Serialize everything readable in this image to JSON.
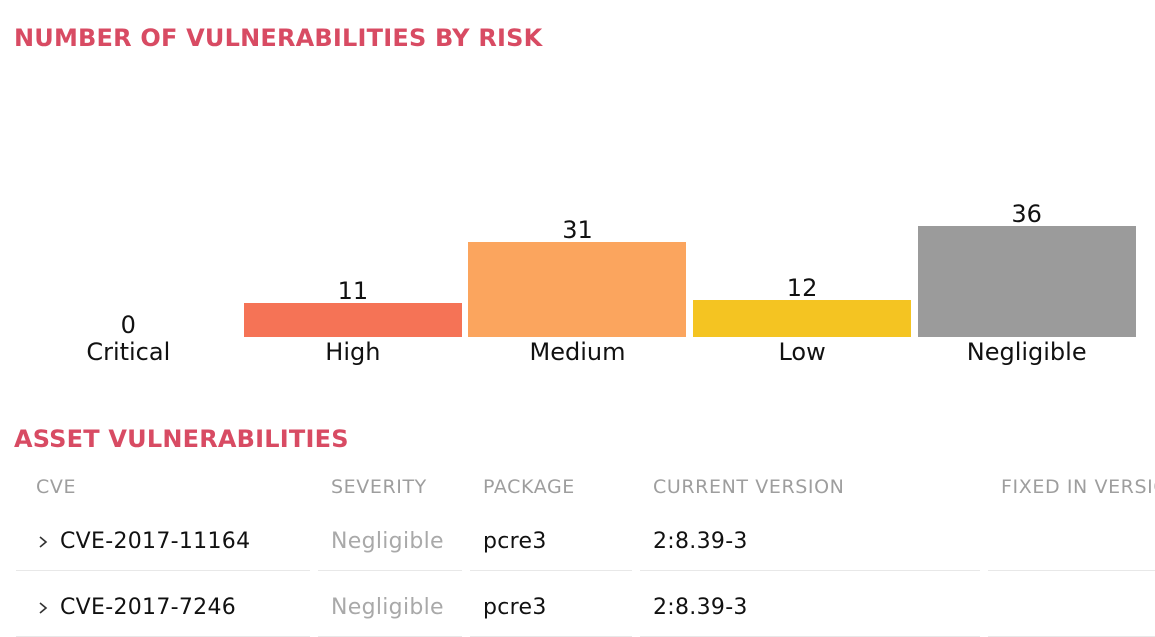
{
  "chart_section": {
    "title": "NUMBER OF VULNERABILITIES BY RISK",
    "title_color": "#d84b63"
  },
  "chart_data": {
    "type": "bar",
    "title": "NUMBER OF VULNERABILITIES BY RISK",
    "categories": [
      "Critical",
      "High",
      "Medium",
      "Low",
      "Negligible"
    ],
    "values": [
      0,
      11,
      31,
      12,
      36
    ],
    "bar_colors": [
      "#e25549",
      "#f57356",
      "#fba55e",
      "#f4c422",
      "#9b9b9b"
    ],
    "xlabel": "",
    "ylabel": "",
    "ylim": [
      0,
      40
    ],
    "grid": false,
    "legend": false,
    "value_labels_shown": true,
    "axis_lines_shown": false
  },
  "table_section": {
    "title": "ASSET VULNERABILITIES",
    "columns": [
      "CVE",
      "SEVERITY",
      "PACKAGE",
      "CURRENT VERSION",
      "FIXED IN VERSION"
    ],
    "rows": [
      {
        "cve": "CVE-2017-11164",
        "severity": "Negligible",
        "package": "pcre3",
        "current_version": "2:8.39-3",
        "fixed_in_version": ""
      },
      {
        "cve": "CVE-2017-7246",
        "severity": "Negligible",
        "package": "pcre3",
        "current_version": "2:8.39-3",
        "fixed_in_version": ""
      }
    ]
  },
  "colors": {
    "section_title": "#d84b63",
    "table_header_text": "#9e9e9e",
    "severity_negligible_text": "#a9a9a9",
    "row_divider": "#e8e8e8",
    "chart_label_text": "#111111",
    "background": "#ffffff"
  },
  "icons": {
    "row_expander": "chevron-right-icon"
  }
}
